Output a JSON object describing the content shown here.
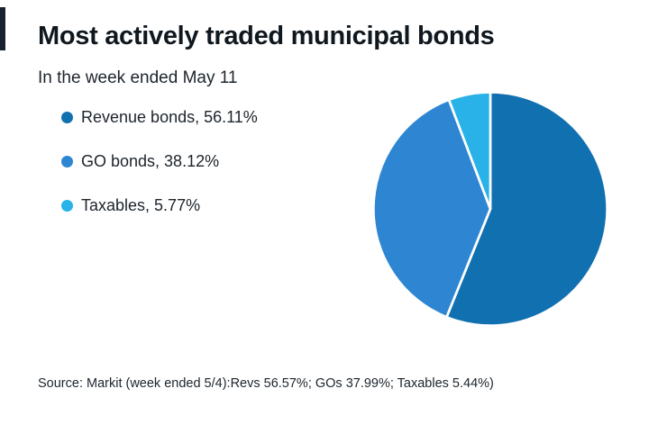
{
  "header": {
    "title": "Most actively traded municipal bonds",
    "subtitle": "In the week ended May 11"
  },
  "source": "Source: Markit (week ended 5/4):Revs 56.57%; GOs 37.99%; Taxables 5.44%)",
  "chart_data": {
    "type": "pie",
    "title": "Most actively traded municipal bonds",
    "subtitle": "In the week ended May 11",
    "legend_position": "upper-left",
    "start_angle_deg": -90,
    "direction": "clockwise",
    "slice_gap_stroke": "#ffffff",
    "slices": [
      {
        "name": "revenue-bonds",
        "category": "Revenue bonds",
        "value": 56.11,
        "label": "Revenue bonds, 56.11%",
        "color": "#1170b0"
      },
      {
        "name": "go-bonds",
        "category": "GO bonds",
        "value": 38.12,
        "label": "GO bonds, 38.12%",
        "color": "#2e86d3"
      },
      {
        "name": "taxables",
        "category": "Taxables",
        "value": 5.77,
        "label": "Taxables, 5.77%",
        "color": "#29b2e8"
      }
    ]
  }
}
